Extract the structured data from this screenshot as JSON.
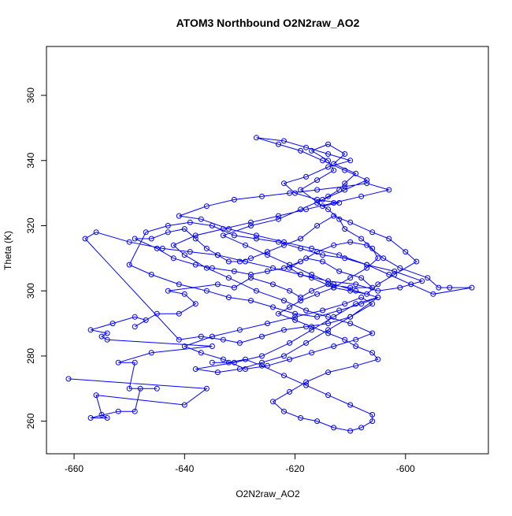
{
  "chart_data": {
    "type": "scatter",
    "title": "ATOM3 Northbound O2N2raw_AO2",
    "xlabel": "O2N2raw_AO2",
    "ylabel": "Theta (K)",
    "xlim": [
      -665,
      -585
    ],
    "ylim": [
      250,
      375
    ],
    "x_ticks": [
      -660,
      -640,
      -620,
      -600
    ],
    "y_ticks": [
      260,
      280,
      300,
      320,
      340,
      360
    ],
    "x_tick_labels": [
      "-660",
      "-640",
      "-620",
      "-600"
    ],
    "y_tick_labels": [
      "260",
      "280",
      "300",
      "320",
      "340",
      "360"
    ],
    "grid": false,
    "legend": "none",
    "colors": {
      "series": "#0000ff",
      "axes": "#000000",
      "background": "#ffffff"
    },
    "series": [
      {
        "style": "points-and-lines",
        "x": [
          -661,
          -636,
          -640,
          -656,
          -655,
          -654,
          -657,
          -652,
          -649,
          -648,
          -645,
          -650,
          -649,
          -652,
          -646,
          -635,
          -654,
          -655,
          -654,
          -657,
          -653,
          -649,
          -647,
          -649,
          -645,
          -641,
          -638,
          -640,
          -643,
          -634,
          -631,
          -628,
          -624,
          -621,
          -619,
          -617,
          -614,
          -610,
          -606,
          -608,
          -612,
          -615,
          -618,
          -621,
          -619,
          -617,
          -613,
          -610,
          -607,
          -605,
          -602,
          -598,
          -600,
          -603,
          -606,
          -610,
          -613,
          -616,
          -619,
          -622,
          -625,
          -628,
          -630,
          -632,
          -634,
          -636,
          -638,
          -640,
          -643,
          -646,
          -649,
          -645,
          -642,
          -638,
          -635,
          -631,
          -628,
          -625,
          -622,
          -619,
          -616,
          -613,
          -610,
          -607,
          -604,
          -601,
          -596,
          -594,
          -592,
          -588,
          -595,
          -599,
          -603,
          -607,
          -611,
          -615,
          -619,
          -623,
          -627,
          -631,
          -635,
          -639,
          -643,
          -647,
          -650,
          -646,
          -641,
          -636,
          -632,
          -628,
          -624,
          -620,
          -616,
          -612,
          -608,
          -605,
          -610,
          -614,
          -618,
          -622,
          -626,
          -630,
          -633,
          -637,
          -641,
          -658,
          -656,
          -650,
          -644,
          -639,
          -634,
          -629,
          -624,
          -619,
          -614,
          -609,
          -605,
          -601,
          -597,
          -602,
          -607,
          -612,
          -617,
          -622,
          -627,
          -632,
          -637,
          -641,
          -636,
          -631,
          -626,
          -621,
          -616,
          -611,
          -607,
          -603,
          -608,
          -613,
          -618,
          -623,
          -628,
          -633,
          -638,
          -642,
          -640,
          -636,
          -632,
          -627,
          -622,
          -618,
          -614,
          -610,
          -606,
          -609,
          -613,
          -617,
          -621,
          -625,
          -629,
          -633,
          -637,
          -640,
          -635,
          -630,
          -625,
          -620,
          -615,
          -611,
          -608,
          -606,
          -610,
          -614,
          -618,
          -622,
          -626,
          -630,
          -634,
          -638,
          -631,
          -626,
          -621,
          -617,
          -613,
          -609,
          -605,
          -609,
          -613,
          -617,
          -621,
          -625,
          -629,
          -633,
          -628,
          -623,
          -619,
          -615,
          -611,
          -607,
          -611,
          -615,
          -619,
          -623,
          -627,
          -622,
          -618,
          -614,
          -610,
          -614,
          -618,
          -622,
          -620,
          -616,
          -612,
          -615,
          -619,
          -616,
          -613,
          -614,
          -617,
          -614,
          -611,
          -613,
          -609,
          -611,
          -612,
          -614,
          -616,
          -614,
          -612,
          -611,
          -608,
          -606,
          -605,
          -607,
          -610,
          -613,
          -616,
          -619,
          -621,
          -623,
          -620,
          -617,
          -614,
          -611,
          -609,
          -606,
          -605,
          -609,
          -614,
          -618,
          -621,
          -624,
          -622,
          -619,
          -616,
          -613,
          -610,
          -608,
          -606,
          -606,
          -610,
          -614,
          -618,
          -622,
          -626,
          -629,
          -632,
          -635
        ],
        "y": [
          273,
          270,
          265,
          268,
          262,
          261,
          261,
          263,
          263,
          270,
          270,
          270,
          278,
          278,
          281,
          283,
          285,
          286,
          287,
          288,
          290,
          292,
          291,
          289,
          293,
          293,
          296,
          299,
          300,
          302,
          301,
          304,
          302,
          300,
          298,
          300,
          302,
          301,
          301,
          304,
          306,
          309,
          310,
          307,
          305,
          304,
          301,
          300,
          299,
          302,
          305,
          309,
          312,
          316,
          318,
          321,
          323,
          320,
          316,
          314,
          312,
          310,
          309,
          309,
          311,
          313,
          316,
          319,
          318,
          316,
          316,
          313,
          310,
          308,
          307,
          306,
          305,
          306,
          307,
          309,
          312,
          314,
          315,
          314,
          310,
          307,
          304,
          301,
          301,
          301,
          299,
          302,
          305,
          308,
          310,
          311,
          313,
          315,
          316,
          317,
          320,
          321,
          320,
          318,
          308,
          305,
          302,
          300,
          298,
          297,
          295,
          293,
          292,
          294,
          296,
          298,
          292,
          290,
          289,
          288,
          286,
          284,
          285,
          286,
          285,
          316,
          318,
          315,
          313,
          312,
          311,
          309,
          307,
          305,
          303,
          302,
          300,
          301,
          303,
          306,
          308,
          311,
          313,
          315,
          317,
          319,
          322,
          323,
          326,
          328,
          329,
          330,
          331,
          332,
          333,
          331,
          329,
          327,
          325,
          323,
          321,
          319,
          317,
          314,
          311,
          307,
          304,
          300,
          297,
          294,
          292,
          290,
          287,
          285,
          283,
          281,
          279,
          277,
          276,
          279,
          281,
          283,
          286,
          288,
          290,
          292,
          294,
          296,
          298,
          296,
          292,
          288,
          284,
          280,
          278,
          276,
          275,
          276,
          278,
          280,
          284,
          288,
          292,
          296,
          298,
          300,
          302,
          305,
          308,
          311,
          314,
          317,
          320,
          322,
          325,
          328,
          331,
          334,
          337,
          340,
          343,
          345,
          347,
          346,
          344,
          342,
          340,
          338,
          335,
          333,
          330,
          328,
          327,
          326,
          331,
          334,
          337,
          340,
          343,
          345,
          342,
          339,
          336,
          333,
          331,
          329,
          327,
          325,
          322,
          319,
          316,
          313,
          310,
          307,
          304,
          301,
          299,
          297,
          295,
          293,
          291,
          289,
          287,
          285,
          283,
          281,
          279,
          277,
          275,
          272,
          269,
          266,
          263,
          261,
          260,
          258,
          257,
          258,
          260,
          262,
          265,
          268,
          271,
          274,
          277,
          279,
          278,
          278
        ]
      }
    ]
  }
}
